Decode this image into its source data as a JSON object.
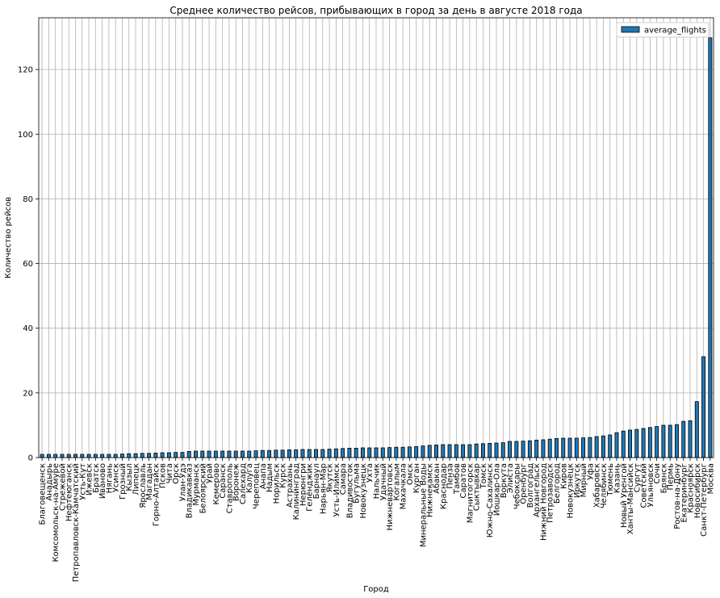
{
  "chart_data": {
    "type": "bar",
    "title": "Среднее количество рейсов, прибывающих в город за день в августе 2018 года",
    "xlabel": "Город",
    "ylabel": "Количество рейсов",
    "ylim": [
      0,
      136
    ],
    "yticks": [
      0,
      20,
      40,
      60,
      80,
      100,
      120
    ],
    "grid": true,
    "legend_position": "top-right",
    "bar_color": "#1f77b4",
    "bar_edge_color": "#000000",
    "series": [
      {
        "name": "average_flights"
      }
    ],
    "categories": [
      "Благовещенск",
      "Анадырь",
      "Комсомольск-на-Амуре",
      "Стрежевой",
      "Нефтеюганск",
      "Петропавловск-Камчатский",
      "Усть-Кут",
      "Ижевск",
      "Братск",
      "Иваново",
      "Нягань",
      "Усинск",
      "Грозный",
      "Кызыл",
      "Липецк",
      "Ярославль",
      "Магадан",
      "Горно-Алтайск",
      "Псков",
      "Чита",
      "Орск",
      "Улан-Удэ",
      "Владикавказ",
      "Мурманск",
      "Белоярский",
      "Урай",
      "Кемерово",
      "Саранск",
      "Ставрополь",
      "Воронеж",
      "Салехард",
      "Калуга",
      "Череповец",
      "Анапа",
      "Надым",
      "Норильск",
      "Курск",
      "Астрахань",
      "Калининград",
      "Нерюнгри",
      "Геленджик",
      "Барнаул",
      "Нарьян-Мар",
      "Якутск",
      "Усть-Илимск",
      "Самара",
      "Владивосток",
      "Бугульма",
      "Новокузнецк",
      "Ухта",
      "Нальчик",
      "Удачный",
      "Нижневартовск",
      "Когалым",
      "Махачкала",
      "Омск",
      "Курган",
      "Минеральные Воды",
      "Нижнекамск",
      "Абакан",
      "Краснодар",
      "Пенза",
      "Тамбов",
      "Саратов",
      "Магнитогорск",
      "Сыктывкар",
      "Томск",
      "Южно-Сахалинск",
      "Йошкар-Ола",
      "Воркута",
      "Элиста",
      "Чебоксары",
      "Оренбург",
      "Волгоград",
      "Архангельск",
      "Нижний Новгород",
      "Петрозаводск",
      "Белгород",
      "Киров",
      "Новокузнецк",
      "Иркутск",
      "Мирный",
      "Уфа",
      "Хабаровск",
      "Челябинск",
      "Тюмень",
      "Казань",
      "Новый Уренгой",
      "Ханты-Мансийск",
      "Сургут",
      "Советский",
      "Ульяновск",
      "Сочи",
      "Брянск",
      "Пермь",
      "Ростов-на-Дону",
      "Екатеринбург",
      "Красноярск",
      "Новосибирск",
      "Санкт-Петербург",
      "Москва"
    ],
    "values": [
      1.0,
      1.0,
      1.0,
      1.0,
      1.0,
      1.0,
      1.0,
      1.0,
      1.0,
      1.0,
      1.0,
      1.0,
      1.1,
      1.2,
      1.2,
      1.3,
      1.3,
      1.4,
      1.5,
      1.5,
      1.6,
      1.6,
      1.9,
      2.0,
      2.0,
      2.0,
      2.0,
      2.0,
      2.0,
      2.0,
      2.0,
      2.0,
      2.1,
      2.2,
      2.2,
      2.3,
      2.3,
      2.4,
      2.4,
      2.5,
      2.5,
      2.5,
      2.5,
      2.6,
      2.7,
      2.8,
      2.9,
      2.9,
      3.0,
      3.0,
      3.0,
      3.0,
      3.1,
      3.2,
      3.2,
      3.3,
      3.4,
      3.6,
      3.8,
      3.9,
      4.0,
      4.0,
      4.0,
      4.0,
      4.0,
      4.2,
      4.3,
      4.4,
      4.5,
      4.6,
      5.0,
      5.0,
      5.1,
      5.2,
      5.4,
      5.5,
      5.7,
      5.9,
      6.0,
      6.0,
      6.0,
      6.1,
      6.2,
      6.5,
      6.7,
      7.0,
      7.7,
      8.2,
      8.5,
      8.7,
      9.0,
      9.3,
      9.6,
      10.0,
      10.0,
      10.2,
      11.2,
      11.4,
      17.3,
      31.2,
      129.8
    ]
  }
}
